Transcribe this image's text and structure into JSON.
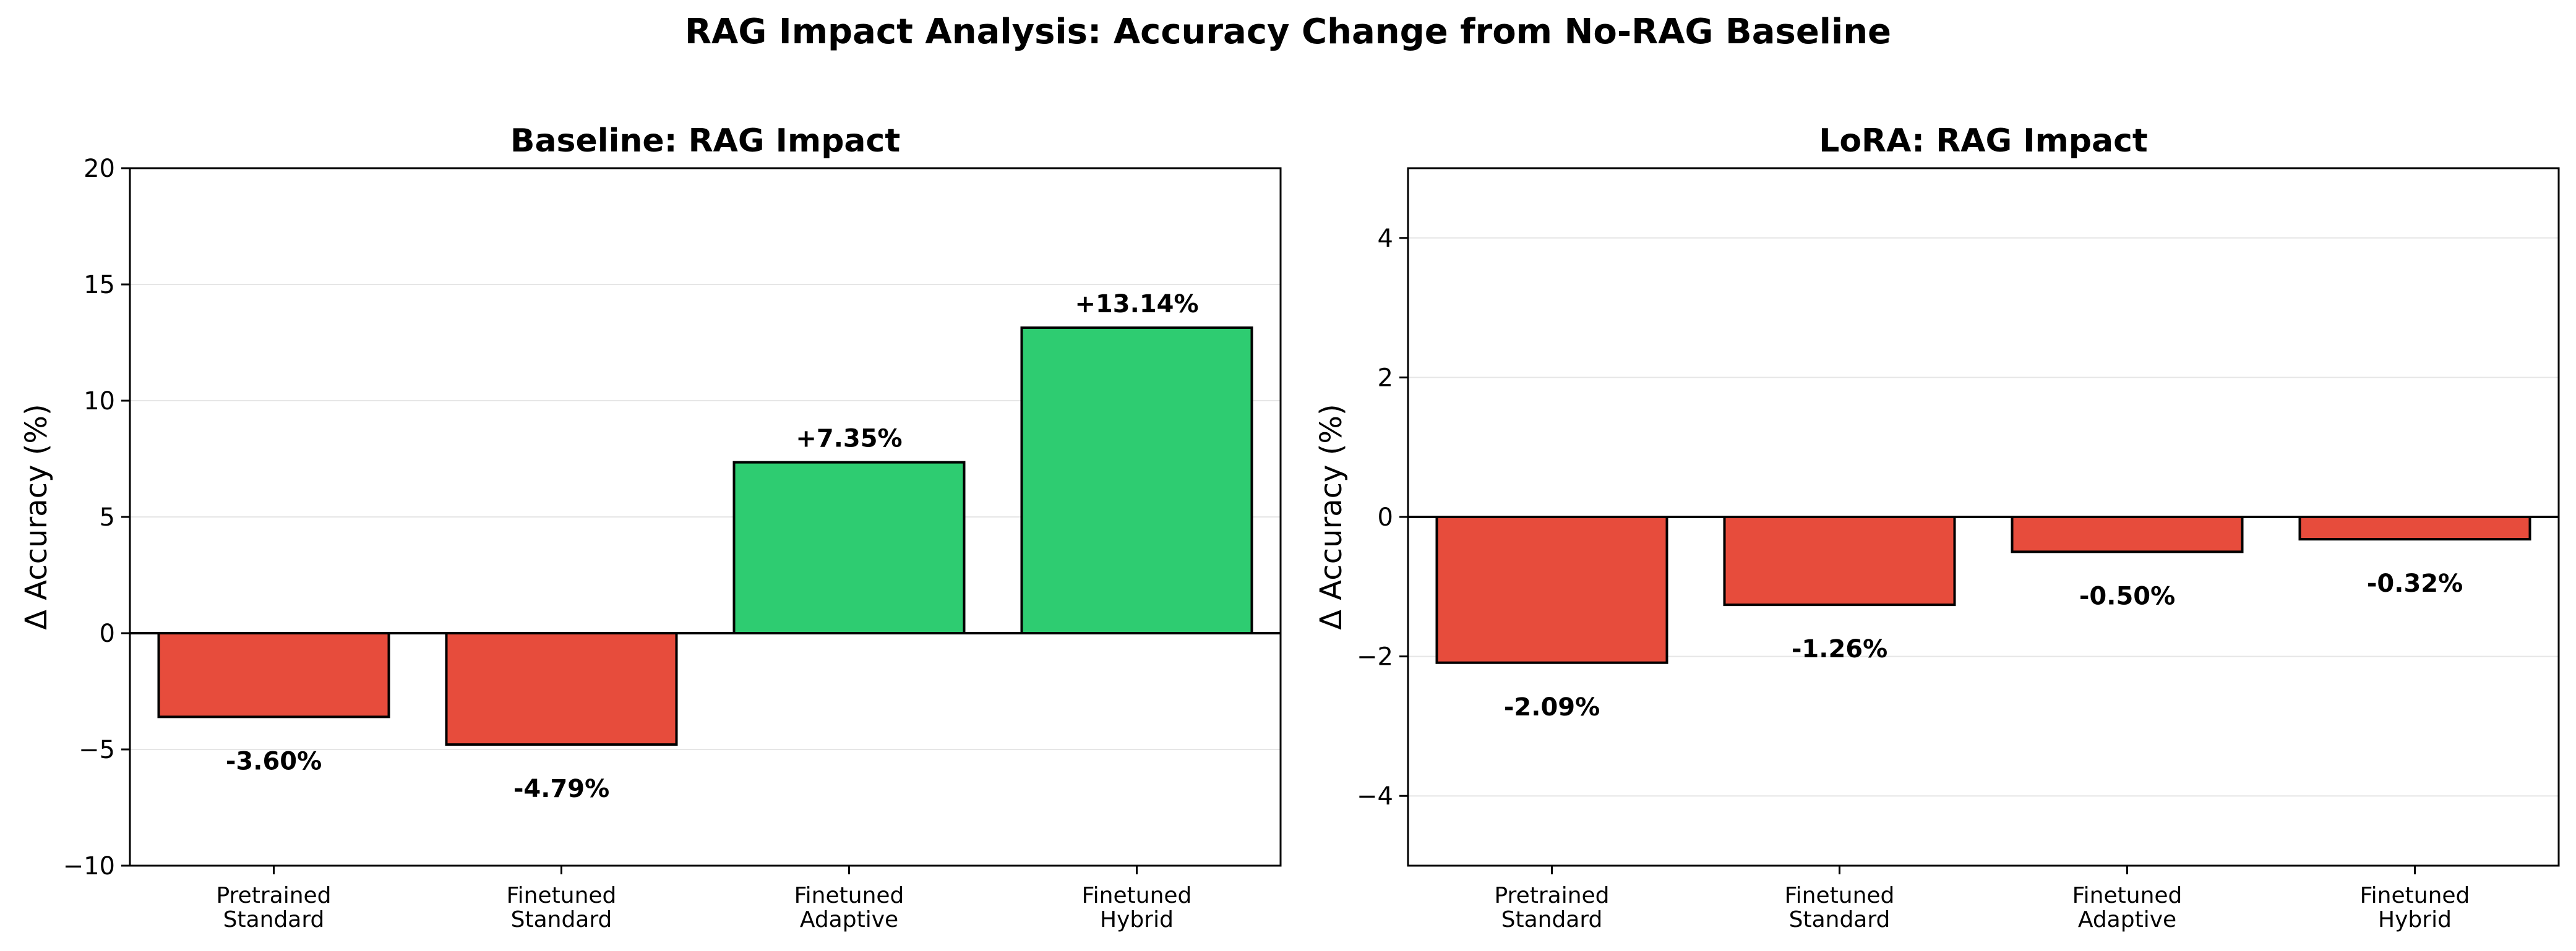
{
  "figure": {
    "title": "RAG Impact Analysis: Accuracy Change from No-RAG Baseline"
  },
  "colors": {
    "positive": "#2ecc71",
    "negative": "#e74c3c",
    "bar_edge": "#000000",
    "grid": "#e6e6e6",
    "text": "#000000"
  },
  "chart_data": [
    {
      "type": "bar",
      "title": "Baseline: RAG Impact",
      "xlabel": "",
      "ylabel": "Δ Accuracy (%)",
      "categories": [
        [
          "Pretrained",
          "Standard"
        ],
        [
          "Finetuned",
          "Standard"
        ],
        [
          "Finetuned",
          "Adaptive"
        ],
        [
          "Finetuned",
          "Hybrid"
        ]
      ],
      "values": [
        -3.6,
        -4.79,
        7.35,
        13.14
      ],
      "value_labels": [
        "-3.60%",
        "-4.79%",
        "+7.35%",
        "+13.14%"
      ],
      "ylim": [
        -10,
        20
      ],
      "yticks": [
        -10,
        -5,
        0,
        5,
        10,
        15,
        20
      ],
      "ytick_labels": [
        "−10",
        "−5",
        "0",
        "5",
        "10",
        "15",
        "20"
      ],
      "grid": "y",
      "zero_line": true
    },
    {
      "type": "bar",
      "title": "LoRA: RAG Impact",
      "xlabel": "",
      "ylabel": "Δ Accuracy (%)",
      "categories": [
        [
          "Pretrained",
          "Standard"
        ],
        [
          "Finetuned",
          "Standard"
        ],
        [
          "Finetuned",
          "Adaptive"
        ],
        [
          "Finetuned",
          "Hybrid"
        ]
      ],
      "values": [
        -2.09,
        -1.26,
        -0.5,
        -0.32
      ],
      "value_labels": [
        "-2.09%",
        "-1.26%",
        "-0.50%",
        "-0.32%"
      ],
      "ylim": [
        -5,
        5
      ],
      "yticks": [
        -4,
        -2,
        0,
        2,
        4
      ],
      "ytick_labels": [
        "−4",
        "−2",
        "0",
        "2",
        "4"
      ],
      "grid": "y",
      "zero_line": true
    }
  ]
}
